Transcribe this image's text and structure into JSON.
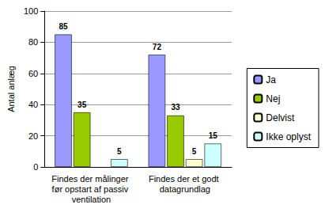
{
  "chart_data": {
    "type": "bar",
    "y_label": "Antal anlæg",
    "categories": [
      "Findes der målinger før opstart af passiv ventilation",
      "Findes der et godt datagrundlag"
    ],
    "series": [
      {
        "name": "Ja",
        "color": "#9999ff",
        "values": [
          85,
          72
        ]
      },
      {
        "name": "Nej",
        "color": "#99cc00",
        "values": [
          35,
          33
        ]
      },
      {
        "name": "Delvist",
        "color": "#ffffcc",
        "values": [
          null,
          5
        ]
      },
      {
        "name": "Ikke oplyst",
        "color": "#ccffff",
        "values": [
          5,
          15
        ]
      }
    ],
    "ylim": [
      0,
      100
    ],
    "yticks": [
      0,
      20,
      40,
      60,
      80,
      100
    ],
    "grid": true,
    "legend": "right",
    "data_labels": true
  }
}
